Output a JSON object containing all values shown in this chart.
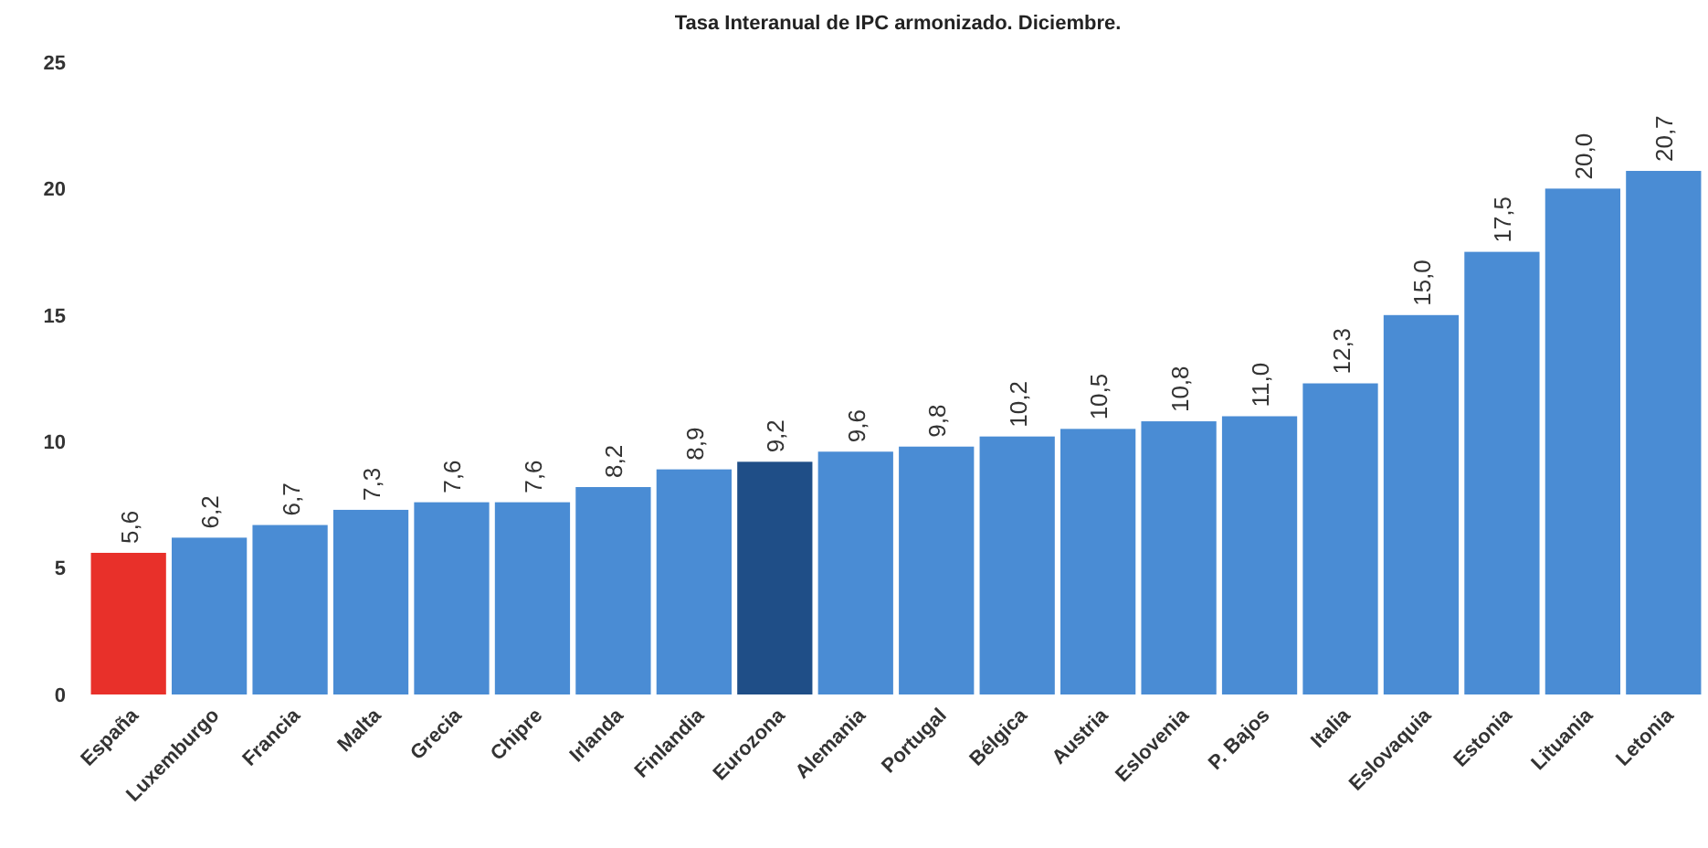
{
  "chart_data": {
    "type": "bar",
    "title": "Tasa Interanual de IPC armonizado. Diciembre.",
    "categories": [
      "España",
      "Luxemburgo",
      "Francia",
      "Malta",
      "Grecia",
      "Chipre",
      "Irlanda",
      "Finlandia",
      "Eurozona",
      "Alemania",
      "Portugal",
      "Bélgica",
      "Austria",
      "Eslovenia",
      "P. Bajos",
      "Italia",
      "Eslovaquia",
      "Estonia",
      "Lituania",
      "Letonia"
    ],
    "values": [
      5.6,
      6.2,
      6.7,
      7.3,
      7.6,
      7.6,
      8.2,
      8.9,
      9.2,
      9.6,
      9.8,
      10.2,
      10.5,
      10.8,
      11.0,
      12.3,
      15.0,
      17.5,
      20.0,
      20.7
    ],
    "colors": [
      "#e8302a",
      "#4a8cd4",
      "#4a8cd4",
      "#4a8cd4",
      "#4a8cd4",
      "#4a8cd4",
      "#4a8cd4",
      "#4a8cd4",
      "#1f4e87",
      "#4a8cd4",
      "#4a8cd4",
      "#4a8cd4",
      "#4a8cd4",
      "#4a8cd4",
      "#4a8cd4",
      "#4a8cd4",
      "#4a8cd4",
      "#4a8cd4",
      "#4a8cd4",
      "#4a8cd4"
    ],
    "value_labels": [
      "5,6",
      "6,2",
      "6,7",
      "7,3",
      "7,6",
      "7,6",
      "8,2",
      "8,9",
      "9,2",
      "9,6",
      "9,8",
      "10,2",
      "10,5",
      "10,8",
      "11,0",
      "12,3",
      "15,0",
      "17,5",
      "20,0",
      "20,7"
    ],
    "ylim": [
      0,
      25
    ],
    "yticks": [
      0,
      5,
      10,
      15,
      20,
      25
    ],
    "grid": false
  }
}
